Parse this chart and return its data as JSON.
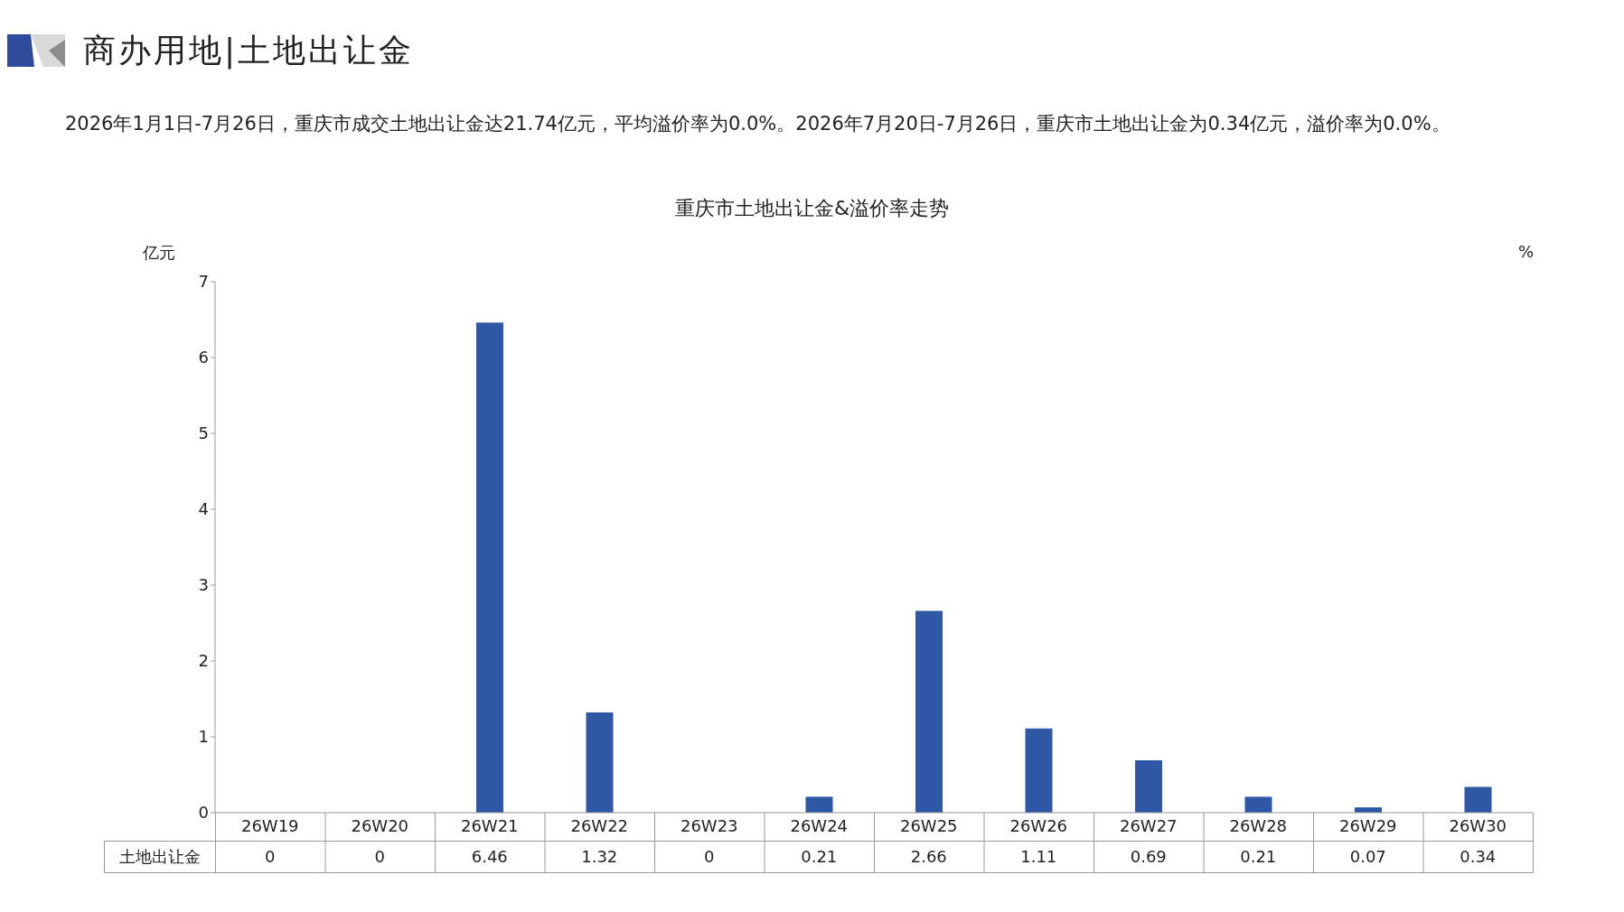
{
  "chart_data": {
    "type": "bar",
    "title": "商办用地|土地出让金",
    "subtitle": "2026年1月1日-7月26日，重庆市成交土地出让金达21.74亿元，平均溢价率为0.0%。2026年7月20日-7月26日，重庆市土地出让金为0.34亿元，溢价率为0.0%。",
    "annotations": [
      "重庆市土地出让金&溢价率走势"
    ],
    "ylabel": "亿元",
    "y2label": "%",
    "categories": [
      "26W19",
      "26W20",
      "26W21",
      "26W22",
      "26W23",
      "26W24",
      "26W25",
      "26W26",
      "26W27",
      "26W28",
      "26W29",
      "26W30"
    ],
    "series": [
      {
        "name": "土地出让金",
        "color": "#2e58a6",
        "values": [
          0,
          0,
          6.46,
          1.32,
          0,
          0.21,
          2.66,
          1.11,
          0.69,
          0.21,
          0.07,
          0.34
        ]
      }
    ],
    "ylim": [
      0,
      7
    ],
    "yticks": [
      0,
      1,
      2,
      3,
      4,
      5,
      6,
      7
    ],
    "data_labels": true
  }
}
